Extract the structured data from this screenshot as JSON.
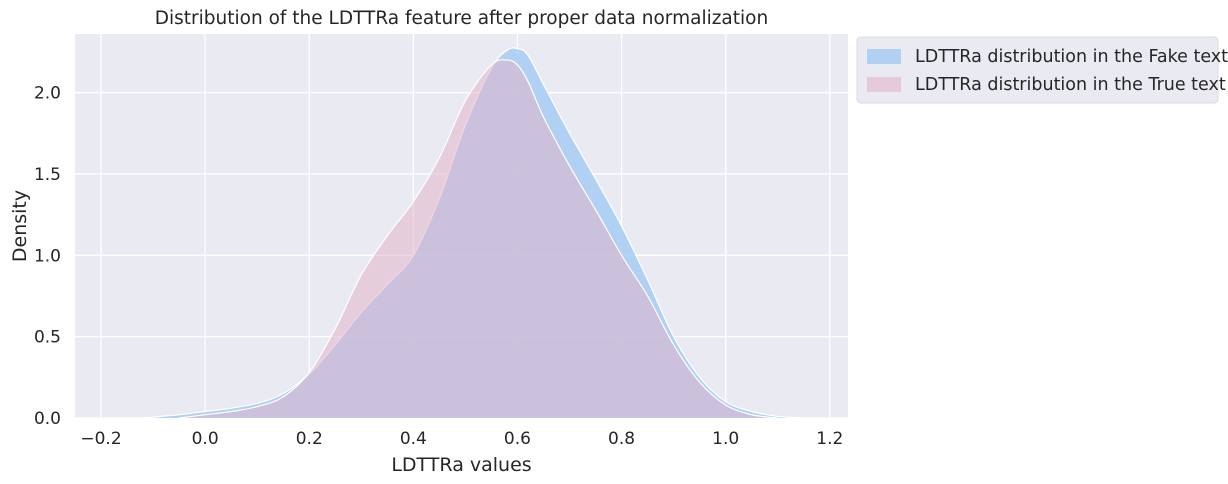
{
  "chart_data": {
    "type": "area",
    "title": "Distribution of the LDTTRa feature after proper data normalization",
    "xlabel": "LDTTRa values",
    "ylabel": "Density",
    "xlim": [
      -0.25,
      1.235
    ],
    "ylim": [
      0,
      2.36
    ],
    "xticks": [
      -0.2,
      0.0,
      0.2,
      0.4,
      0.6,
      0.8,
      1.0,
      1.2
    ],
    "xtick_labels": [
      "−0.2",
      "0.0",
      "0.2",
      "0.4",
      "0.6",
      "0.8",
      "1.0",
      "1.2"
    ],
    "yticks": [
      0.0,
      0.5,
      1.0,
      1.5,
      2.0
    ],
    "ytick_labels": [
      "0.0",
      "0.5",
      "1.0",
      "1.5",
      "2.0"
    ],
    "grid": true,
    "legend_position": "outside-top-right",
    "series": [
      {
        "name": "LDTTRa distribution in the Fake text",
        "color": "#a1c9f4",
        "x": [
          -0.12,
          -0.05,
          0.0,
          0.05,
          0.1,
          0.15,
          0.2,
          0.25,
          0.3,
          0.35,
          0.4,
          0.45,
          0.5,
          0.55,
          0.58,
          0.6,
          0.62,
          0.65,
          0.7,
          0.75,
          0.8,
          0.85,
          0.9,
          0.95,
          1.0,
          1.05,
          1.1,
          1.15
        ],
        "y": [
          0.0,
          0.02,
          0.04,
          0.06,
          0.09,
          0.15,
          0.27,
          0.45,
          0.65,
          0.82,
          1.0,
          1.35,
          1.8,
          2.15,
          2.26,
          2.27,
          2.23,
          2.05,
          1.75,
          1.47,
          1.18,
          0.85,
          0.5,
          0.25,
          0.1,
          0.04,
          0.01,
          0.0
        ]
      },
      {
        "name": "LDTTRa distribution in the True text",
        "color": "#e1b4c8",
        "x": [
          -0.05,
          0.0,
          0.05,
          0.1,
          0.15,
          0.2,
          0.25,
          0.3,
          0.35,
          0.4,
          0.45,
          0.5,
          0.55,
          0.58,
          0.6,
          0.62,
          0.65,
          0.7,
          0.75,
          0.8,
          0.85,
          0.9,
          0.95,
          1.0,
          1.05,
          1.1
        ],
        "y": [
          0.0,
          0.02,
          0.04,
          0.07,
          0.13,
          0.28,
          0.55,
          0.88,
          1.12,
          1.33,
          1.6,
          1.95,
          2.17,
          2.2,
          2.17,
          2.07,
          1.85,
          1.55,
          1.28,
          1.0,
          0.75,
          0.45,
          0.22,
          0.08,
          0.02,
          0.0
        ]
      }
    ]
  }
}
